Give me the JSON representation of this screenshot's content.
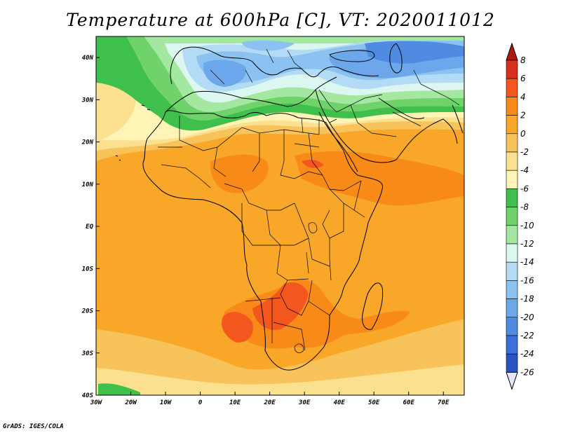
{
  "title": "Temperature at 600hPa [C], VT: 2020011012",
  "credit": "GrADS: IGES/COLA",
  "map": {
    "extent": {
      "lon": [
        -30,
        76
      ],
      "lat": [
        -40,
        45
      ]
    },
    "lon_ticks": [
      {
        "value": -30,
        "label": "30W"
      },
      {
        "value": -20,
        "label": "20W"
      },
      {
        "value": -10,
        "label": "10W"
      },
      {
        "value": 0,
        "label": "0"
      },
      {
        "value": 10,
        "label": "10E"
      },
      {
        "value": 20,
        "label": "20E"
      },
      {
        "value": 30,
        "label": "30E"
      },
      {
        "value": 40,
        "label": "40E"
      },
      {
        "value": 50,
        "label": "50E"
      },
      {
        "value": 60,
        "label": "60E"
      },
      {
        "value": 70,
        "label": "70E"
      }
    ],
    "lat_ticks": [
      {
        "value": 40,
        "label": "40N"
      },
      {
        "value": 30,
        "label": "30N"
      },
      {
        "value": 20,
        "label": "20N"
      },
      {
        "value": 10,
        "label": "10N"
      },
      {
        "value": 0,
        "label": "EQ"
      },
      {
        "value": -10,
        "label": "10S"
      },
      {
        "value": -20,
        "label": "20S"
      },
      {
        "value": -30,
        "label": "30S"
      },
      {
        "value": -40,
        "label": "40S"
      }
    ]
  },
  "colorbar": {
    "levels": [
      "8",
      "6",
      "4",
      "2",
      "0",
      "-2",
      "-4",
      "-6",
      "-8",
      "-10",
      "-12",
      "-14",
      "-16",
      "-18",
      "-20",
      "-22",
      "-24",
      "-26"
    ],
    "colors": [
      "#d7301f",
      "#f4571e",
      "#f88b17",
      "#f9a728",
      "#f7c35a",
      "#fbe08f",
      "#fdf4b6",
      "#3fbf4b",
      "#6fd26a",
      "#a4e7a0",
      "#dcf7f0",
      "#b3dbf6",
      "#8cc2f1",
      "#6ba7ea",
      "#4f8be1",
      "#3b6fd9",
      "#2a52c0",
      "#18339d",
      "#0c1a6e"
    ],
    "over_color": "#b01810",
    "under_color": "#e6e3fb"
  }
}
